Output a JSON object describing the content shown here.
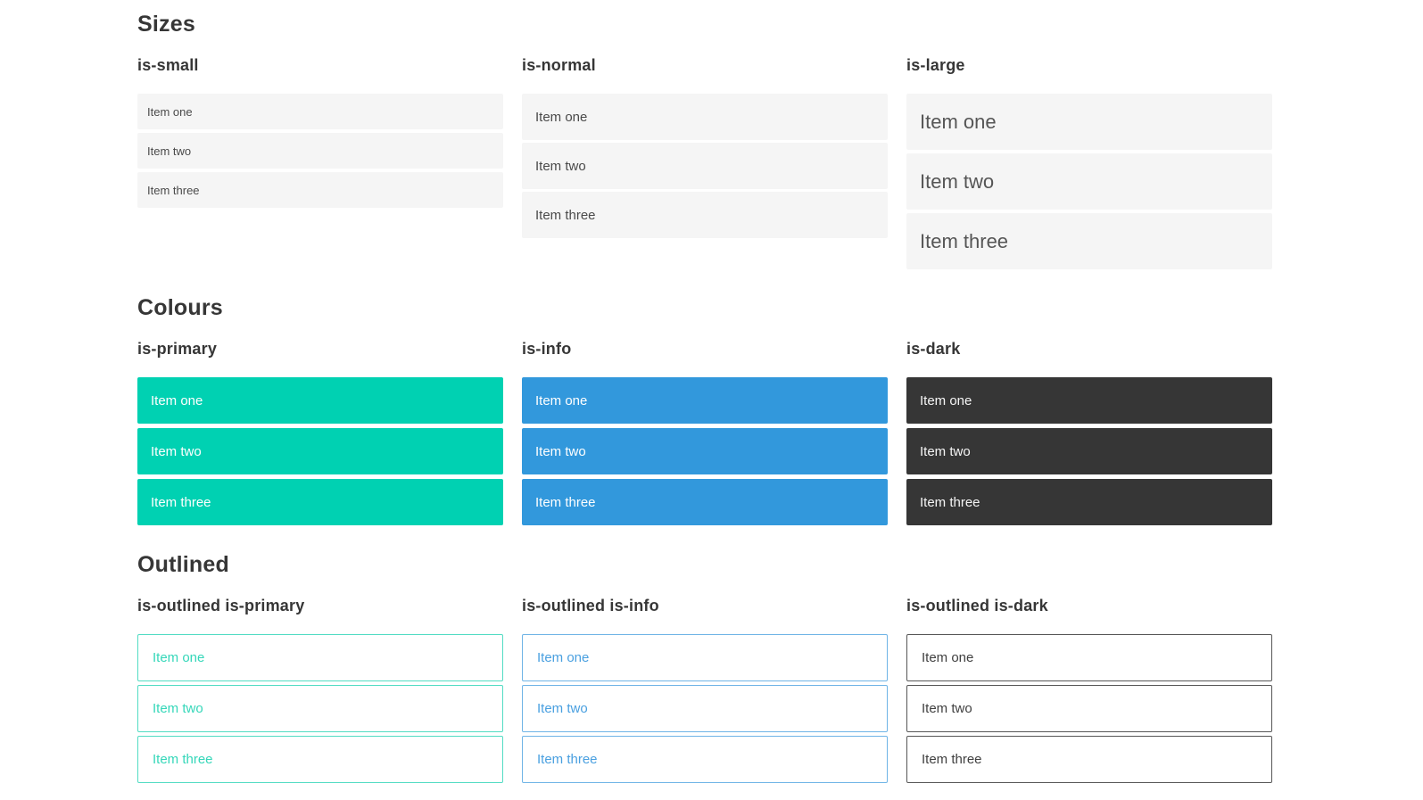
{
  "colors": {
    "page_background": "#ffffff",
    "heading_text": "#363636",
    "item_default_bg": "#f5f5f5",
    "item_default_text": "#4a4a4a",
    "primary": "#00d1b2",
    "info": "#3298dc",
    "dark": "#363636",
    "on_color_text": "#ffffff",
    "outlined_primary": "#35d7b9",
    "outlined_info": "#4aa0e0",
    "outlined_dark": "#404040"
  },
  "sections": [
    {
      "title": "Sizes",
      "columns": [
        {
          "heading": "is-small",
          "items": [
            "Item one",
            "Item two",
            "Item three"
          ]
        },
        {
          "heading": "is-normal",
          "items": [
            "Item one",
            "Item two",
            "Item three"
          ]
        },
        {
          "heading": "is-large",
          "items": [
            "Item one",
            "Item two",
            "Item three"
          ]
        }
      ]
    },
    {
      "title": "Colours",
      "columns": [
        {
          "heading": "is-primary",
          "items": [
            "Item one",
            "Item two",
            "Item three"
          ]
        },
        {
          "heading": "is-info",
          "items": [
            "Item one",
            "Item two",
            "Item three"
          ]
        },
        {
          "heading": "is-dark",
          "items": [
            "Item one",
            "Item two",
            "Item three"
          ]
        }
      ]
    },
    {
      "title": "Outlined",
      "columns": [
        {
          "heading": "is-outlined is-primary",
          "items": [
            "Item one",
            "Item two",
            "Item three"
          ]
        },
        {
          "heading": "is-outlined is-info",
          "items": [
            "Item one",
            "Item two",
            "Item three"
          ]
        },
        {
          "heading": "is-outlined is-dark",
          "items": [
            "Item one",
            "Item two",
            "Item three"
          ]
        }
      ]
    }
  ]
}
